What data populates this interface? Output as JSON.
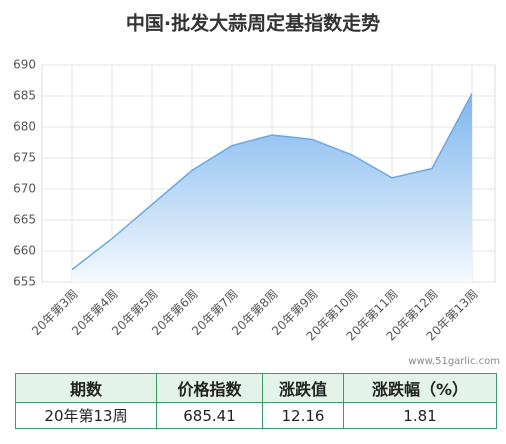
{
  "chart_data": {
    "type": "area",
    "title": "中国·批发大蒜周定基指数走势",
    "categories": [
      "20年第3周",
      "20年第4周",
      "20年第5周",
      "20年第6周",
      "20年第7周",
      "20年第8周",
      "20年第9周",
      "20年第10周",
      "20年第11周",
      "20年第12周",
      "20年第13周"
    ],
    "values": [
      657,
      662,
      667.5,
      673,
      677,
      678.7,
      678,
      675.5,
      671.8,
      673.3,
      685.41
    ],
    "color": "#6aaae8",
    "ylim": [
      655,
      690
    ],
    "yticks": [
      655,
      660,
      665,
      670,
      675,
      680,
      685,
      690
    ],
    "grid": true
  },
  "watermark": "www.51garlic.com",
  "table": {
    "header": [
      "期数",
      "价格指数",
      "涨跌值",
      "涨跌幅（%）"
    ],
    "rows": [
      [
        "20年第13周",
        685.41,
        12.16,
        1.81
      ]
    ]
  }
}
